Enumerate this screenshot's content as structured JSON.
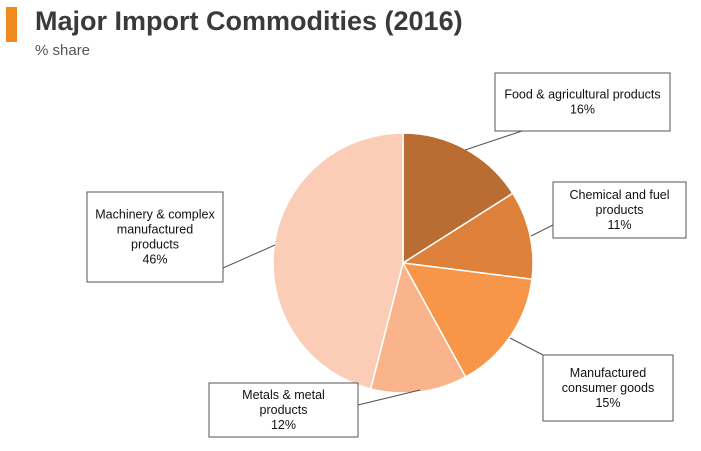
{
  "header": {
    "title": "Major Import Commodities (2016)",
    "subtitle": "% share"
  },
  "chart_data": {
    "type": "pie",
    "title": "Major Import Commodities (2016)",
    "subtitle": "% share",
    "unit": "%",
    "slices": [
      {
        "label": "Food & agricultural products",
        "value": 16,
        "value_label": "16%",
        "color": "#b96d32"
      },
      {
        "label": "Chemical and fuel products",
        "value": 11,
        "value_label": "11%",
        "color": "#de823b"
      },
      {
        "label": "Manufactured consumer goods",
        "value": 15,
        "value_label": "15%",
        "color": "#f79648"
      },
      {
        "label": "Metals & metal products",
        "value": 12,
        "value_label": "12%",
        "color": "#f9b48c"
      },
      {
        "label": "Machinery & complex manufactured products",
        "value": 46,
        "value_label": "46%",
        "color": "#fbcdb6"
      }
    ]
  }
}
